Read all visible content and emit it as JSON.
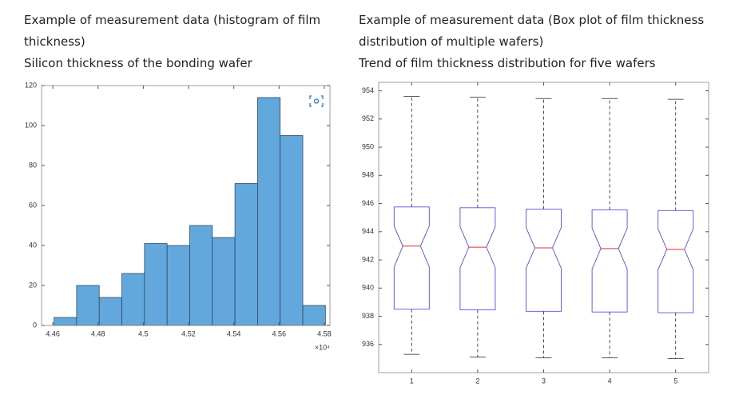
{
  "chart_data": [
    {
      "type": "histogram",
      "title": "Example of measurement data (histogram of film thickness)",
      "subtitle": "Silicon thickness of the bonding wafer",
      "bins": [
        4.4605,
        4.4705,
        4.4805,
        4.4905,
        4.5005,
        4.5105,
        4.5205,
        4.5305,
        4.5405,
        4.5505,
        4.5605,
        4.5705,
        4.5805
      ],
      "counts": [
        4,
        20,
        14,
        26,
        41,
        40,
        50,
        44,
        71,
        114,
        95,
        10
      ],
      "color": "#62a8dc",
      "edge_color": "#2b3a4a",
      "xlim": [
        4.455,
        4.5825
      ],
      "xticks": [
        4.46,
        4.48,
        4.5,
        4.52,
        4.54,
        4.56,
        4.58
      ],
      "x_multiplier": "×10⁴",
      "ylim": [
        0,
        120
      ],
      "yticks": [
        0,
        20,
        40,
        60,
        80,
        100,
        120
      ]
    },
    {
      "type": "box",
      "title": "Example of measurement data (Box plot of film thickness distribution of multiple wafers)",
      "subtitle": "Trend of film thickness distribution for five wafers",
      "categories": [
        "1",
        "2",
        "3",
        "4",
        "5"
      ],
      "boxes": [
        {
          "whisker_low": 935.3,
          "q1": 938.5,
          "notch_low": 941.5,
          "median": 942.98,
          "notch_high": 944.4,
          "q3": 945.76,
          "whisker_high": 953.6
        },
        {
          "whisker_low": 935.1,
          "q1": 938.45,
          "notch_low": 941.45,
          "median": 942.9,
          "notch_high": 944.35,
          "q3": 945.7,
          "whisker_high": 953.55
        },
        {
          "whisker_low": 935.05,
          "q1": 938.35,
          "notch_low": 941.4,
          "median": 942.85,
          "notch_high": 944.3,
          "q3": 945.6,
          "whisker_high": 953.45
        },
        {
          "whisker_low": 935.05,
          "q1": 938.3,
          "notch_low": 941.35,
          "median": 942.8,
          "notch_high": 944.25,
          "q3": 945.55,
          "whisker_high": 953.45
        },
        {
          "whisker_low": 935.0,
          "q1": 938.25,
          "notch_low": 941.3,
          "median": 942.75,
          "notch_high": 944.2,
          "q3": 945.5,
          "whisker_high": 953.4
        }
      ],
      "box_color": "#5050d8",
      "median_color": "#e03030",
      "whisker_color": "#222222",
      "xlim": [
        0.5,
        5.5
      ],
      "ylim": [
        934,
        954.6
      ],
      "yticks": [
        936,
        938,
        940,
        942,
        944,
        946,
        948,
        950,
        952,
        954
      ]
    }
  ]
}
